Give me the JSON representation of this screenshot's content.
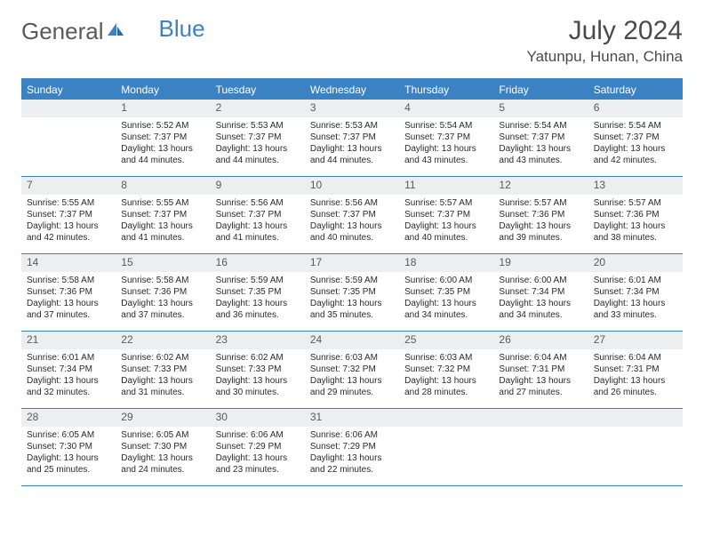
{
  "logo": {
    "text1": "General",
    "text2": "Blue"
  },
  "title": "July 2024",
  "location": "Yatunpu, Hunan, China",
  "colors": {
    "accent": "#3b82c4",
    "header_bg": "#3b82c4",
    "header_text": "#ffffff",
    "daynum_bg": "#eceeef",
    "text": "#2a2a2a",
    "logo_gray": "#5a5a5a"
  },
  "day_names": [
    "Sunday",
    "Monday",
    "Tuesday",
    "Wednesday",
    "Thursday",
    "Friday",
    "Saturday"
  ],
  "weeks": [
    [
      {
        "day": "",
        "lines": []
      },
      {
        "day": "1",
        "lines": [
          "Sunrise: 5:52 AM",
          "Sunset: 7:37 PM",
          "Daylight: 13 hours",
          "and 44 minutes."
        ]
      },
      {
        "day": "2",
        "lines": [
          "Sunrise: 5:53 AM",
          "Sunset: 7:37 PM",
          "Daylight: 13 hours",
          "and 44 minutes."
        ]
      },
      {
        "day": "3",
        "lines": [
          "Sunrise: 5:53 AM",
          "Sunset: 7:37 PM",
          "Daylight: 13 hours",
          "and 44 minutes."
        ]
      },
      {
        "day": "4",
        "lines": [
          "Sunrise: 5:54 AM",
          "Sunset: 7:37 PM",
          "Daylight: 13 hours",
          "and 43 minutes."
        ]
      },
      {
        "day": "5",
        "lines": [
          "Sunrise: 5:54 AM",
          "Sunset: 7:37 PM",
          "Daylight: 13 hours",
          "and 43 minutes."
        ]
      },
      {
        "day": "6",
        "lines": [
          "Sunrise: 5:54 AM",
          "Sunset: 7:37 PM",
          "Daylight: 13 hours",
          "and 42 minutes."
        ]
      }
    ],
    [
      {
        "day": "7",
        "lines": [
          "Sunrise: 5:55 AM",
          "Sunset: 7:37 PM",
          "Daylight: 13 hours",
          "and 42 minutes."
        ]
      },
      {
        "day": "8",
        "lines": [
          "Sunrise: 5:55 AM",
          "Sunset: 7:37 PM",
          "Daylight: 13 hours",
          "and 41 minutes."
        ]
      },
      {
        "day": "9",
        "lines": [
          "Sunrise: 5:56 AM",
          "Sunset: 7:37 PM",
          "Daylight: 13 hours",
          "and 41 minutes."
        ]
      },
      {
        "day": "10",
        "lines": [
          "Sunrise: 5:56 AM",
          "Sunset: 7:37 PM",
          "Daylight: 13 hours",
          "and 40 minutes."
        ]
      },
      {
        "day": "11",
        "lines": [
          "Sunrise: 5:57 AM",
          "Sunset: 7:37 PM",
          "Daylight: 13 hours",
          "and 40 minutes."
        ]
      },
      {
        "day": "12",
        "lines": [
          "Sunrise: 5:57 AM",
          "Sunset: 7:36 PM",
          "Daylight: 13 hours",
          "and 39 minutes."
        ]
      },
      {
        "day": "13",
        "lines": [
          "Sunrise: 5:57 AM",
          "Sunset: 7:36 PM",
          "Daylight: 13 hours",
          "and 38 minutes."
        ]
      }
    ],
    [
      {
        "day": "14",
        "lines": [
          "Sunrise: 5:58 AM",
          "Sunset: 7:36 PM",
          "Daylight: 13 hours",
          "and 37 minutes."
        ]
      },
      {
        "day": "15",
        "lines": [
          "Sunrise: 5:58 AM",
          "Sunset: 7:36 PM",
          "Daylight: 13 hours",
          "and 37 minutes."
        ]
      },
      {
        "day": "16",
        "lines": [
          "Sunrise: 5:59 AM",
          "Sunset: 7:35 PM",
          "Daylight: 13 hours",
          "and 36 minutes."
        ]
      },
      {
        "day": "17",
        "lines": [
          "Sunrise: 5:59 AM",
          "Sunset: 7:35 PM",
          "Daylight: 13 hours",
          "and 35 minutes."
        ]
      },
      {
        "day": "18",
        "lines": [
          "Sunrise: 6:00 AM",
          "Sunset: 7:35 PM",
          "Daylight: 13 hours",
          "and 34 minutes."
        ]
      },
      {
        "day": "19",
        "lines": [
          "Sunrise: 6:00 AM",
          "Sunset: 7:34 PM",
          "Daylight: 13 hours",
          "and 34 minutes."
        ]
      },
      {
        "day": "20",
        "lines": [
          "Sunrise: 6:01 AM",
          "Sunset: 7:34 PM",
          "Daylight: 13 hours",
          "and 33 minutes."
        ]
      }
    ],
    [
      {
        "day": "21",
        "lines": [
          "Sunrise: 6:01 AM",
          "Sunset: 7:34 PM",
          "Daylight: 13 hours",
          "and 32 minutes."
        ]
      },
      {
        "day": "22",
        "lines": [
          "Sunrise: 6:02 AM",
          "Sunset: 7:33 PM",
          "Daylight: 13 hours",
          "and 31 minutes."
        ]
      },
      {
        "day": "23",
        "lines": [
          "Sunrise: 6:02 AM",
          "Sunset: 7:33 PM",
          "Daylight: 13 hours",
          "and 30 minutes."
        ]
      },
      {
        "day": "24",
        "lines": [
          "Sunrise: 6:03 AM",
          "Sunset: 7:32 PM",
          "Daylight: 13 hours",
          "and 29 minutes."
        ]
      },
      {
        "day": "25",
        "lines": [
          "Sunrise: 6:03 AM",
          "Sunset: 7:32 PM",
          "Daylight: 13 hours",
          "and 28 minutes."
        ]
      },
      {
        "day": "26",
        "lines": [
          "Sunrise: 6:04 AM",
          "Sunset: 7:31 PM",
          "Daylight: 13 hours",
          "and 27 minutes."
        ]
      },
      {
        "day": "27",
        "lines": [
          "Sunrise: 6:04 AM",
          "Sunset: 7:31 PM",
          "Daylight: 13 hours",
          "and 26 minutes."
        ]
      }
    ],
    [
      {
        "day": "28",
        "lines": [
          "Sunrise: 6:05 AM",
          "Sunset: 7:30 PM",
          "Daylight: 13 hours",
          "and 25 minutes."
        ]
      },
      {
        "day": "29",
        "lines": [
          "Sunrise: 6:05 AM",
          "Sunset: 7:30 PM",
          "Daylight: 13 hours",
          "and 24 minutes."
        ]
      },
      {
        "day": "30",
        "lines": [
          "Sunrise: 6:06 AM",
          "Sunset: 7:29 PM",
          "Daylight: 13 hours",
          "and 23 minutes."
        ]
      },
      {
        "day": "31",
        "lines": [
          "Sunrise: 6:06 AM",
          "Sunset: 7:29 PM",
          "Daylight: 13 hours",
          "and 22 minutes."
        ]
      },
      {
        "day": "",
        "lines": []
      },
      {
        "day": "",
        "lines": []
      },
      {
        "day": "",
        "lines": []
      }
    ]
  ]
}
